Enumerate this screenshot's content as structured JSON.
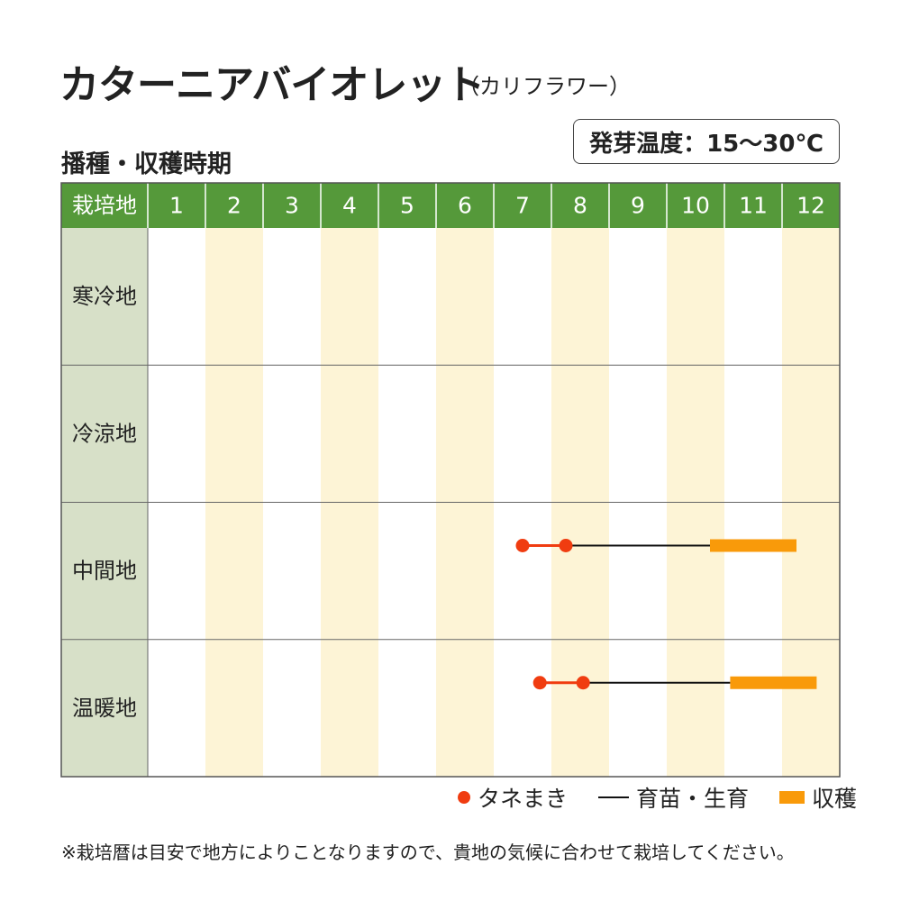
{
  "title": "カターニアバイオレット",
  "title_sub": "（カリフラワー）",
  "subtitle": "播種・収穫時期",
  "temperature": "発芽温度：15～30℃",
  "header_label": "栽培地",
  "months": [
    "1",
    "2",
    "3",
    "4",
    "5",
    "6",
    "7",
    "8",
    "9",
    "10",
    "11",
    "12"
  ],
  "regions": [
    "寒冷地",
    "冷涼地",
    "中間地",
    "温暖地"
  ],
  "legend": {
    "sowing": "タネまき",
    "growing": "育苗・生育",
    "harvest": "収穫"
  },
  "note": "※栽培暦は目安で地方によりことなりますので、貴地の気候に合わせて栽培してください。",
  "colors": {
    "header_green": "#55993a",
    "region_bg": "#d7e0c8",
    "stripe": "#fdf4d6",
    "sowing": "#f03c10",
    "growing": "#111111",
    "harvest": "#f99a0a"
  },
  "chart_data": {
    "type": "table",
    "x_unit": "month",
    "xlim": [
      1,
      13
    ],
    "rows": [
      {
        "region": "寒冷地",
        "sowing": [],
        "growing": [],
        "harvest": []
      },
      {
        "region": "冷涼地",
        "sowing": [],
        "growing": [],
        "harvest": []
      },
      {
        "region": "中間地",
        "sowing": [
          7.5,
          8.25
        ],
        "growing": [
          8.25,
          10.75
        ],
        "harvest": [
          10.75,
          12.25
        ]
      },
      {
        "region": "温暖地",
        "sowing": [
          7.8,
          8.55
        ],
        "growing": [
          8.55,
          11.1
        ],
        "harvest": [
          11.1,
          12.6
        ]
      }
    ]
  }
}
